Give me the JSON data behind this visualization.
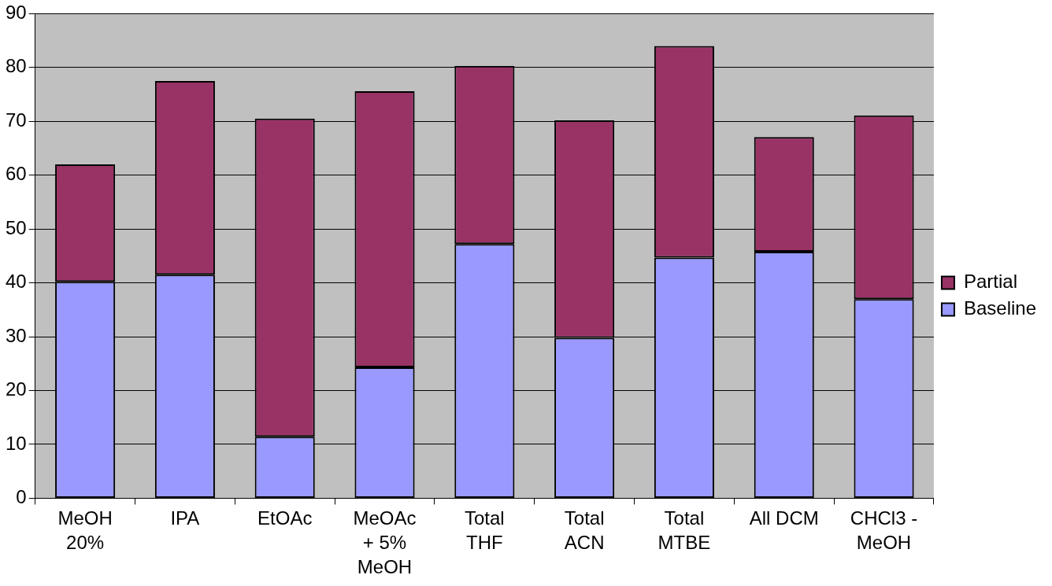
{
  "chart_data": {
    "type": "bar",
    "stacked": true,
    "categories": [
      "MeOH 20%",
      "IPA",
      "EtOAc",
      "MeOAc + 5% MeOH",
      "Total THF",
      "Total ACN",
      "Total MTBE",
      "All DCM",
      "CHCl3 - MeOH"
    ],
    "series": [
      {
        "name": "Baseline",
        "color": "#9999ff",
        "values": [
          40.2,
          41.5,
          11.4,
          24.3,
          47.2,
          29.8,
          44.7,
          45.8,
          37.0
        ]
      },
      {
        "name": "Partial",
        "color": "#993366",
        "values": [
          21.8,
          36.0,
          59.1,
          51.3,
          33.1,
          40.4,
          39.3,
          21.3,
          34.1
        ]
      }
    ],
    "ylim": [
      0,
      90
    ],
    "yticks": [
      0,
      10,
      20,
      30,
      40,
      50,
      60,
      70,
      80,
      90
    ],
    "grid": "y",
    "legend": "right"
  }
}
